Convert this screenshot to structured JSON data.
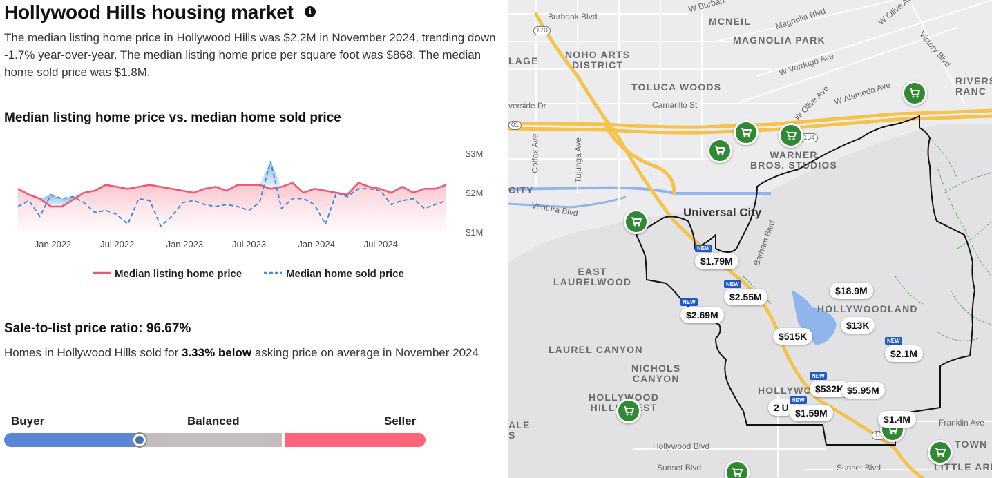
{
  "header": {
    "title": "Hollywood Hills housing market",
    "info_icon": "info-icon"
  },
  "summary": "The median listing home price in Hollywood Hills was $2.2M in November 2024, trending down -1.7% year-over-year. The median listing home price per square foot was $868. The median home sold price was $1.8M.",
  "chart_section": {
    "title": "Median listing home price vs. median home sold price"
  },
  "chart_data": {
    "type": "line",
    "title": "Median listing home price vs. median home sold price",
    "xlabel": "",
    "ylabel": "",
    "x_tick_labels": [
      "Jan 2022",
      "Jul 2022",
      "Jan 2023",
      "Jul 2023",
      "Jan 2024",
      "Jul 2024"
    ],
    "y_tick_labels": [
      "$3M",
      "$2M",
      "$1M"
    ],
    "ylim": [
      1.0,
      3.0
    ],
    "y_ticks": [
      1.0,
      2.0,
      3.0
    ],
    "x_start": "2021-11",
    "series": [
      {
        "name": "Median listing home price",
        "color": "#f0566f",
        "dash": false,
        "values": [
          2.1,
          1.95,
          1.85,
          1.65,
          1.65,
          1.82,
          2.0,
          2.05,
          2.2,
          2.15,
          2.1,
          2.15,
          2.2,
          2.15,
          2.1,
          2.05,
          2.0,
          2.1,
          2.15,
          2.05,
          2.2,
          2.2,
          2.2,
          2.1,
          2.15,
          2.25,
          2.0,
          2.1,
          2.05,
          2.0,
          1.95,
          2.25,
          2.15,
          2.1,
          2.0,
          2.15,
          2.0,
          2.1,
          2.1,
          2.2
        ]
      },
      {
        "name": "Median home sold price",
        "color": "#3f8ed7",
        "dash": true,
        "values": [
          1.65,
          1.8,
          1.4,
          1.95,
          1.85,
          1.9,
          1.75,
          1.5,
          1.55,
          1.45,
          1.2,
          1.85,
          1.8,
          1.15,
          1.4,
          1.75,
          1.8,
          1.7,
          1.65,
          1.7,
          1.65,
          1.55,
          1.75,
          2.8,
          1.6,
          1.85,
          1.85,
          1.7,
          1.2,
          2.0,
          1.9,
          2.1,
          2.1,
          2.05,
          1.7,
          1.8,
          1.85,
          1.6,
          1.7,
          1.8
        ]
      }
    ],
    "legend_position": "bottom",
    "grid": false
  },
  "ratio": {
    "title": "Sale-to-list price ratio: 96.67%",
    "text_before": "Homes in Hollywood Hills sold for ",
    "text_bold": "3.33% below",
    "text_after": " asking price on average in November 2024"
  },
  "gauge": {
    "buyer_label": "Buyer",
    "balanced_label": "Balanced",
    "seller_label": "Seller",
    "buyer_color": "#5b86d8",
    "balanced_color": "#c5bcbc",
    "seller_color": "#ff6478",
    "value": 0.32
  },
  "map": {
    "areas": [
      {
        "id": "mcneil",
        "text": "MCNEIL"
      },
      {
        "id": "magnolia-park",
        "text": "MAGNOLIA PARK"
      },
      {
        "id": "noho",
        "text": "NOHO ARTS\nDISTRICT"
      },
      {
        "id": "toluca-woods",
        "text": "TOLUCA WOODS"
      },
      {
        "id": "warner",
        "text": "WARNER\nBROS. STUDIOS"
      },
      {
        "id": "universal-city",
        "text": "Universal City"
      },
      {
        "id": "east-laurelwood",
        "text": "EAST\nLAURELWOOD"
      },
      {
        "id": "hollywoodland",
        "text": "HOLLYWOODLAND"
      },
      {
        "id": "laurel-canyon",
        "text": "LAUREL CANYON"
      },
      {
        "id": "nichols-canyon",
        "text": "NICHOLS\nCANYON"
      },
      {
        "id": "hollywood-hills-west",
        "text": "HOLLYWOOD\nHILLS WEST"
      },
      {
        "id": "hollywood",
        "text": "HOLLYWO"
      },
      {
        "id": "riverside-ranch",
        "text": "RIVERS\nRANC"
      },
      {
        "id": "lage",
        "text": "LAGE"
      },
      {
        "id": "city",
        "text": "CITY"
      },
      {
        "id": "ale",
        "text": "ALE\nS"
      },
      {
        "id": "thai-town",
        "text": "TOWN"
      },
      {
        "id": "little-arm",
        "text": "LITTLE ARM"
      }
    ],
    "streets": [
      {
        "id": "burbank-blvd",
        "text": "Burbank Blvd"
      },
      {
        "id": "magnolia-blvd",
        "text": "Magnolia Blvd"
      },
      {
        "id": "w-verdugo",
        "text": "W Verdugo Ave"
      },
      {
        "id": "w-olive",
        "text": "W Olive Ave"
      },
      {
        "id": "w-alameda",
        "text": "W Alameda Ave"
      },
      {
        "id": "camarillo",
        "text": "Camarillo St"
      },
      {
        "id": "riverside",
        "text": "verside Dr"
      },
      {
        "id": "colfax",
        "text": "Colfax Ave"
      },
      {
        "id": "tujunga",
        "text": "Tujunga Ave"
      },
      {
        "id": "ventura",
        "text": "Ventura Blvd"
      },
      {
        "id": "barham",
        "text": "Barham Blvd"
      },
      {
        "id": "victory",
        "text": "Victory Blvd"
      },
      {
        "id": "w-olive-top",
        "text": "W Olive Av"
      },
      {
        "id": "franklin",
        "text": "Franklin Ave"
      },
      {
        "id": "hollywood-blvd",
        "text": "Hollywood Blvd"
      },
      {
        "id": "sunset-blvd",
        "text": "Sunset Blvd"
      },
      {
        "id": "sunset-blvd-2",
        "text": "Sunset Blvd"
      },
      {
        "id": "w-burb",
        "text": "W Burban"
      },
      {
        "id": "hwy-170",
        "text": "170"
      },
      {
        "id": "hwy-134",
        "text": "134"
      },
      {
        "id": "hwy-101",
        "text": "01"
      },
      {
        "id": "hwy-101b",
        "text": "10"
      }
    ],
    "listings": [
      {
        "id": "p1",
        "price": "$1.79M",
        "is_new": true
      },
      {
        "id": "p2",
        "price": "$2.55M",
        "is_new": true
      },
      {
        "id": "p3",
        "price": "$2.69M",
        "is_new": true
      },
      {
        "id": "p4",
        "price": "$18.9M",
        "is_new": false
      },
      {
        "id": "p5",
        "price": "$13K",
        "is_new": false
      },
      {
        "id": "p6",
        "price": "$515K",
        "is_new": false
      },
      {
        "id": "p7",
        "price": "$2.1M",
        "is_new": true
      },
      {
        "id": "p8",
        "price": "$532K",
        "is_new": true
      },
      {
        "id": "p9",
        "price": "$5.95M",
        "is_new": false
      },
      {
        "id": "p10",
        "price": "2 U",
        "is_new": false
      },
      {
        "id": "p11",
        "price": "$1.59M",
        "is_new": true
      },
      {
        "id": "p12",
        "price": "$1.4M",
        "is_new": false
      }
    ],
    "new_label": "NEW",
    "grocery_color": "#2f8a33"
  }
}
